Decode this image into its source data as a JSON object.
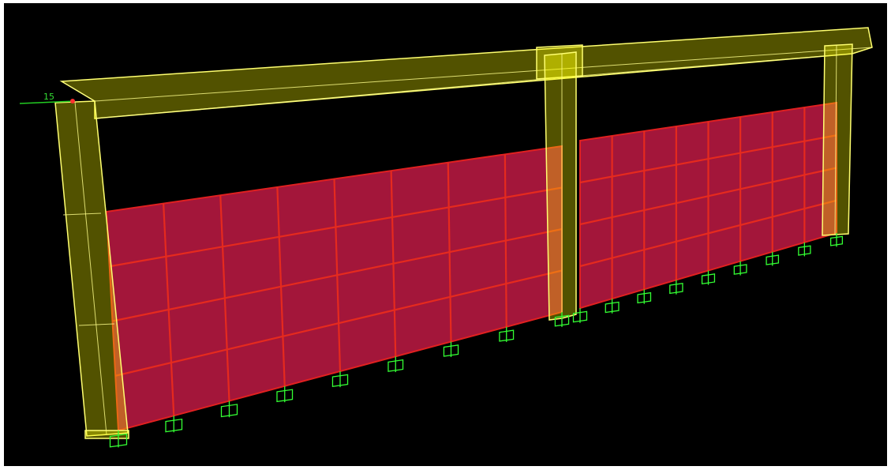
{
  "viewport": {
    "node_label": "15"
  }
}
